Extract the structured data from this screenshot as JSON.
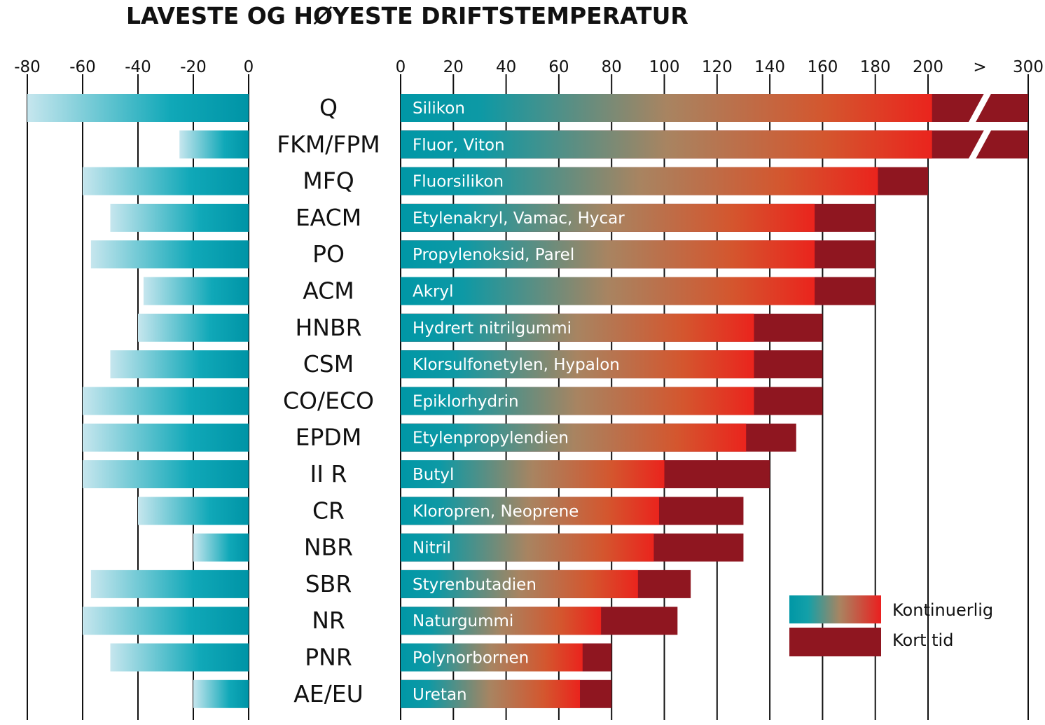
{
  "chart_data": {
    "type": "bar",
    "title": "LAVESTE OG HØYESTE DRIFTSTEMPERATUR",
    "left_axis": {
      "ticks": [
        "-80",
        "-60",
        "-40",
        "-20",
        "0"
      ],
      "range": [
        -80,
        0
      ]
    },
    "right_axis": {
      "ticks": [
        "0",
        "20",
        "40",
        "60",
        "80",
        "100",
        "120",
        "140",
        "160",
        "180",
        "200",
        ">",
        "300"
      ]
    },
    "categories": [
      "Q",
      "FKM/FPM",
      "MFQ",
      "EACM",
      "PO",
      "ACM",
      "HNBR",
      "CSM",
      "CO/ECO",
      "EPDM",
      "II R",
      "CR",
      "NBR",
      "SBR",
      "NR",
      "PNR",
      "AE/EU"
    ],
    "names": [
      "Silikon",
      "Fluor, Viton",
      "Fluorsilikon",
      "Etylenakryl, Vamac, Hycar",
      "Propylenoksid, Parel",
      "Akryl",
      "Hydrert nitrilgummi",
      "Klorsulfonetylen, Hypalon",
      "Epiklorhydrin",
      "Etylenpropylendien",
      "Butyl",
      "Kloropren, Neoprene",
      "Nitril",
      "Styrenbutadien",
      "Naturgummi",
      "Polynorbornen",
      "Uretan"
    ],
    "series": [
      {
        "name": "Laveste",
        "values": [
          -80,
          -25,
          -60,
          -50,
          -57,
          -38,
          -40,
          -50,
          -60,
          -60,
          -60,
          -40,
          -20,
          -57,
          -60,
          -50,
          -20
        ]
      },
      {
        "name": "Kontinuerlig",
        "values": [
          204,
          204,
          181,
          157,
          157,
          157,
          134,
          134,
          134,
          131,
          100,
          98,
          96,
          90,
          76,
          69,
          68
        ]
      },
      {
        "name": "Kort tid",
        "values": [
          300,
          300,
          200,
          180,
          180,
          180,
          160,
          160,
          160,
          150,
          140,
          130,
          130,
          110,
          105,
          80,
          80
        ]
      }
    ],
    "legend": [
      {
        "label": "Kontinuerlig"
      },
      {
        "label": "Kort tid"
      }
    ],
    "legend_placement": "bottom-right",
    "grid": true,
    "colors": {
      "cold_light": "#c6e6ee",
      "cold_dark": "#0099aa",
      "teal": "#0097a6",
      "tan": "#a98461",
      "red": "#e8271e",
      "dark_red": "#8f1620"
    }
  }
}
